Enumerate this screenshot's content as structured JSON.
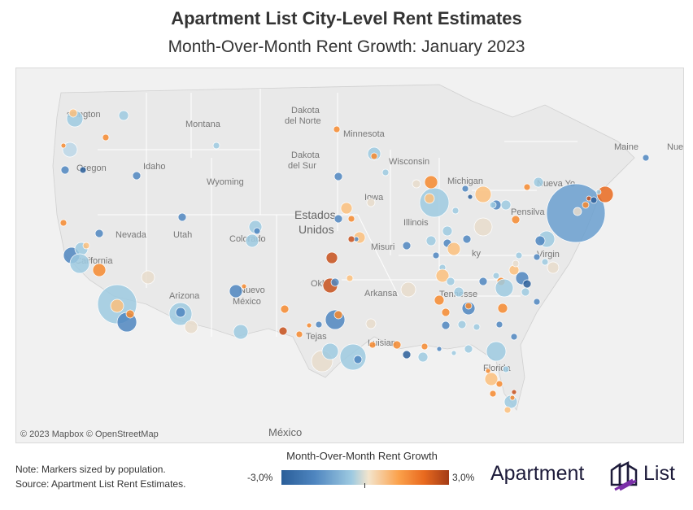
{
  "header": {
    "title": "Apartment List City-Level Rent Estimates",
    "subtitle": "Month-Over-Month Rent Growth: January 2023"
  },
  "map": {
    "attribution": "© 2023 Mapbox  © OpenStreetMap",
    "labels": [
      {
        "id": "washington",
        "text": "shington"
      },
      {
        "id": "montana",
        "text": "Montana"
      },
      {
        "id": "nd1",
        "text": "Dakota"
      },
      {
        "id": "nd2",
        "text": "del Norte"
      },
      {
        "id": "minnesota",
        "text": "Minnesota"
      },
      {
        "id": "oregon",
        "text": "Oregon"
      },
      {
        "id": "idaho",
        "text": "Idaho"
      },
      {
        "id": "sd1",
        "text": "Dakota"
      },
      {
        "id": "sd2",
        "text": "del Sur"
      },
      {
        "id": "wisconsin",
        "text": "Wisconsin"
      },
      {
        "id": "wyoming",
        "text": "Wyoming"
      },
      {
        "id": "michigan",
        "text": "Michigan"
      },
      {
        "id": "maine",
        "text": "Maine"
      },
      {
        "id": "nuevayork",
        "text": "Nueva Yo"
      },
      {
        "id": "iowa",
        "text": "Iowa"
      },
      {
        "id": "estados",
        "text": "Estados"
      },
      {
        "id": "unidos",
        "text": "Unidos"
      },
      {
        "id": "nevada",
        "text": "Nevada"
      },
      {
        "id": "utah",
        "text": "Utah"
      },
      {
        "id": "colorado",
        "text": "Colorado"
      },
      {
        "id": "illinois",
        "text": "Illinois"
      },
      {
        "id": "pensilvania",
        "text": "Pensilva"
      },
      {
        "id": "california",
        "text": "California"
      },
      {
        "id": "missouri",
        "text": "Misuri"
      },
      {
        "id": "kentucky",
        "text": "ky"
      },
      {
        "id": "virginia",
        "text": "Virgin"
      },
      {
        "id": "oklahoma",
        "text": "Okl"
      },
      {
        "id": "tennessee",
        "text": "Tennesse"
      },
      {
        "id": "arizona",
        "text": "Arizona"
      },
      {
        "id": "nuevomexico1",
        "text": "Nuevo"
      },
      {
        "id": "nuevomexico2",
        "text": "México"
      },
      {
        "id": "arkansas",
        "text": "Arkansa"
      },
      {
        "id": "texas",
        "text": "Tejas"
      },
      {
        "id": "louisiana",
        "text": "Luisian"
      },
      {
        "id": "florida",
        "text": "Florida"
      },
      {
        "id": "mexico",
        "text": "México"
      },
      {
        "id": "nue",
        "text": "Nue"
      }
    ]
  },
  "legend": {
    "title": "Month-Over-Month Rent Growth",
    "min_label": "-3,0%",
    "max_label": "3,0%",
    "min": -3.0,
    "max": 3.0
  },
  "footer": {
    "note": "Note: Markers sized by population.",
    "source": "Source: Apartment List Rent Estimates."
  },
  "logo": {
    "name_part1": "Apartment",
    "name_part2": "List",
    "brand_color": "#1d1b3a",
    "accent_color": "#7b2fa8"
  },
  "colors": {
    "strong_negative": "#2a5e99",
    "negative": "#4f86c0",
    "slight_negative": "#9ecae1",
    "neutral": "#e8dccb",
    "slight_positive": "#fbbf7c",
    "positive": "#f68a2f",
    "strong_positive": "#c7501b"
  }
}
